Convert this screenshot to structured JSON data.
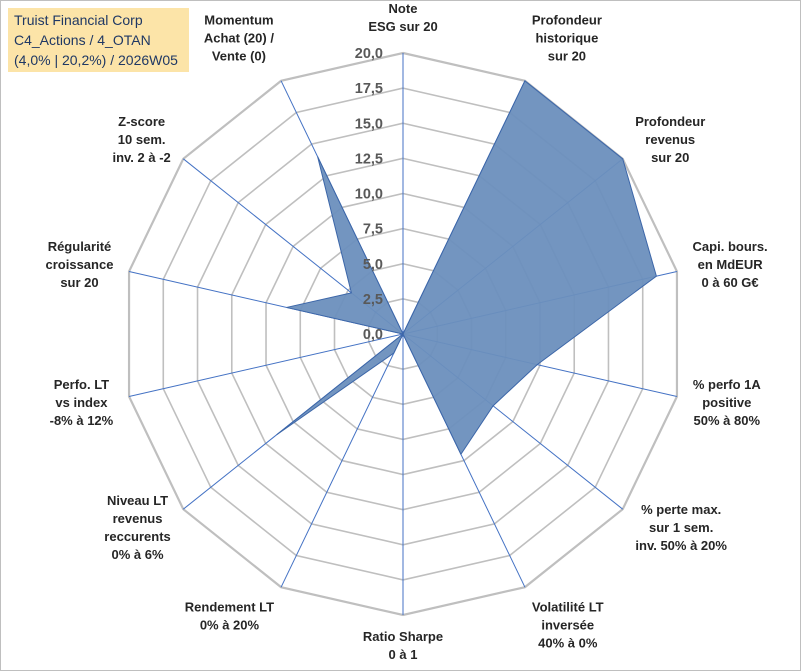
{
  "title": {
    "line1": "Truist Financial Corp",
    "line2": "C4_Actions / 4_OTAN",
    "line3": "(4,0% | 20,2%) / 2026W05"
  },
  "colors": {
    "fill": "#6b8fbd",
    "stroke": "#3c66a8",
    "grid": "#bfbfbf",
    "axis": "#4472c4",
    "title_bg": "#fce4a8"
  },
  "chart_data": {
    "type": "radar",
    "range": [
      0,
      20
    ],
    "ticks": [
      "0,0",
      "2,5",
      "5,0",
      "7,5",
      "10,0",
      "12,5",
      "15,0",
      "17,5",
      "20,0"
    ],
    "categories": [
      [
        "Note",
        "ESG sur 20"
      ],
      [
        "Profondeur",
        "historique",
        "sur 20"
      ],
      [
        "Profondeur",
        "revenus",
        "sur 20"
      ],
      [
        "Capi. bours.",
        "en MdEUR",
        "0 à 60 G€"
      ],
      [
        "% perfo 1A",
        "positive",
        "50% à 80%"
      ],
      [
        "% perte max.",
        "sur 1 sem.",
        "inv. 50% à 20%"
      ],
      [
        "Volatilité LT",
        "inversée",
        "40% à 0%"
      ],
      [
        "Ratio Sharpe",
        "0 à 1"
      ],
      [
        "Rendement LT",
        "0% à 20%"
      ],
      [
        "Niveau LT",
        "revenus",
        "reccurents",
        "0% à 6%"
      ],
      [
        "Perfo. LT",
        "vs index",
        "-8% à 12%"
      ],
      [
        "Régularité",
        "croissance",
        "sur 20"
      ],
      [
        "Z-score",
        "10 sem.",
        "inv. 2 à -2"
      ],
      [
        "Momentum",
        "Achat (20) /",
        "Vente (0)"
      ]
    ],
    "series": [
      {
        "name": "Truist Financial Corp",
        "values": [
          0,
          20,
          20,
          18.5,
          9.8,
          8.2,
          9.5,
          0,
          1.5,
          11.5,
          0,
          8.5,
          4.7,
          14.0
        ]
      }
    ]
  }
}
